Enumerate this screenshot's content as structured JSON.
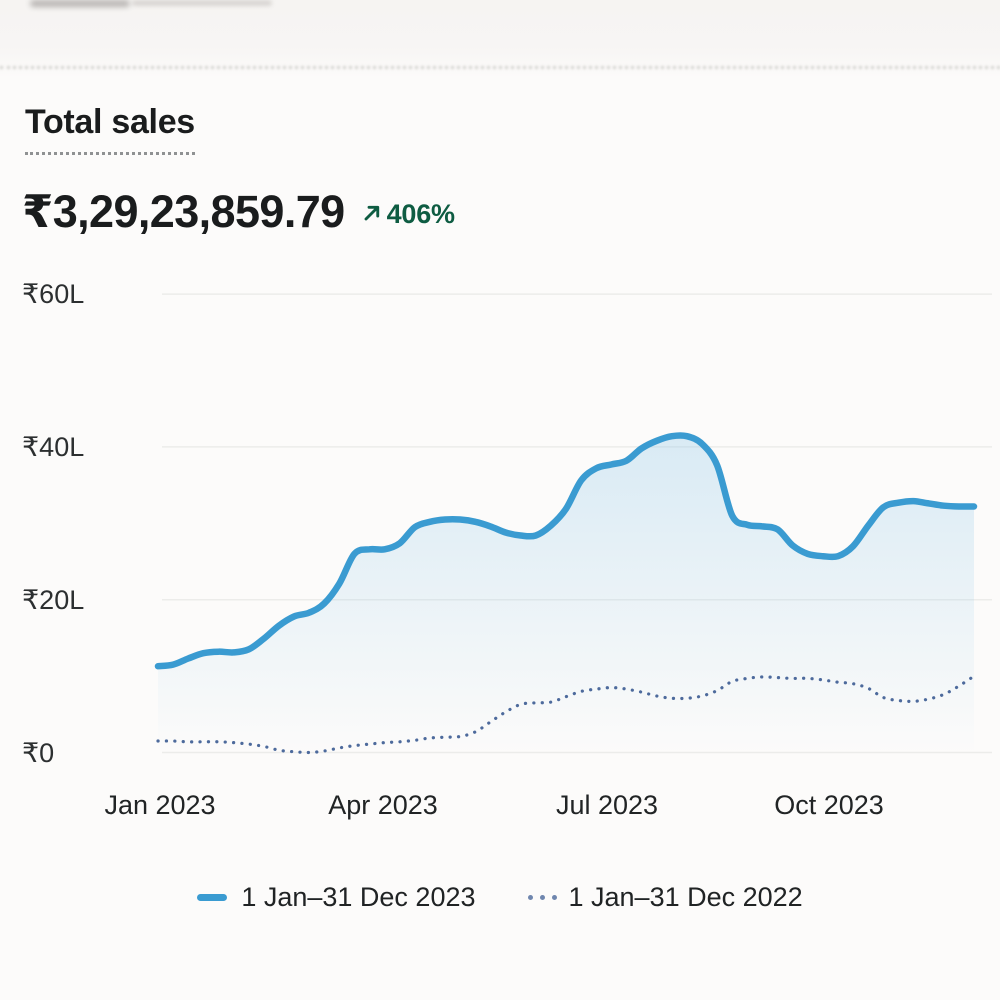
{
  "report": {
    "title": "Total sales",
    "amount": "₹3,29,23,859.79",
    "delta": {
      "direction": "up",
      "value": "406%"
    }
  },
  "colors": {
    "line_2023": "#3a9bd1",
    "area_2023": "#8cc6e8",
    "line_2022": "#4d6a9c",
    "delta_green": "#0e5c42",
    "grid": "#ececea",
    "text_dark": "#1a1c1d"
  },
  "chart_data": {
    "type": "line",
    "title": "Total sales",
    "value_unit": "INR lakh (L)",
    "ylim": [
      0,
      60
    ],
    "grid": "horizontal",
    "legend_position": "bottom-center",
    "y_ticks": [
      {
        "value": 60,
        "label": "₹60L"
      },
      {
        "value": 40,
        "label": "₹40L"
      },
      {
        "value": 20,
        "label": "₹20L"
      },
      {
        "value": 0,
        "label": "₹0"
      }
    ],
    "x_ticks": [
      "Jan 2023",
      "Apr 2023",
      "Jul 2023",
      "Oct 2023"
    ],
    "series": [
      {
        "name": "1 Jan–31 Dec 2023",
        "style": "solid",
        "color": "#3a9bd1",
        "area": true,
        "values_lakh": [
          11.3,
          11.5,
          12.3,
          13.0,
          13.2,
          13.1,
          13.5,
          14.9,
          16.6,
          17.8,
          18.3,
          19.5,
          22.1,
          26.0,
          26.6,
          26.6,
          27.4,
          29.5,
          30.2,
          30.5,
          30.5,
          30.2,
          29.6,
          28.8,
          28.4,
          28.4,
          29.7,
          31.9,
          35.6,
          37.2,
          37.7,
          38.2,
          39.8,
          40.8,
          41.4,
          41.4,
          40.4,
          37.6,
          31.0,
          29.8,
          29.6,
          29.2,
          27.1,
          26.0,
          25.7,
          25.7,
          27.0,
          29.7,
          32.1,
          32.7,
          32.9,
          32.6,
          32.3,
          32.2,
          32.2
        ]
      },
      {
        "name": "1 Jan–31 Dec 2022",
        "style": "dotted",
        "color": "#4d6a9c",
        "area": false,
        "values_lakh": [
          1.5,
          1.5,
          1.4,
          1.4,
          1.4,
          1.3,
          1.1,
          0.8,
          0.3,
          0.1,
          0.0,
          0.2,
          0.6,
          0.9,
          1.1,
          1.3,
          1.4,
          1.6,
          1.9,
          2.0,
          2.1,
          2.7,
          4.0,
          5.3,
          6.3,
          6.5,
          6.6,
          7.3,
          8.0,
          8.3,
          8.5,
          8.3,
          7.9,
          7.4,
          7.1,
          7.1,
          7.4,
          8.1,
          9.3,
          9.7,
          9.9,
          9.8,
          9.7,
          9.7,
          9.5,
          9.2,
          9.0,
          8.4,
          7.2,
          6.8,
          6.7,
          7.0,
          7.6,
          8.7,
          10.0
        ]
      }
    ]
  },
  "legend": {
    "items": [
      {
        "label": "1 Jan–31 Dec 2023",
        "marker": "solid"
      },
      {
        "label": "1 Jan–31 Dec 2022",
        "marker": "dotted"
      }
    ]
  }
}
